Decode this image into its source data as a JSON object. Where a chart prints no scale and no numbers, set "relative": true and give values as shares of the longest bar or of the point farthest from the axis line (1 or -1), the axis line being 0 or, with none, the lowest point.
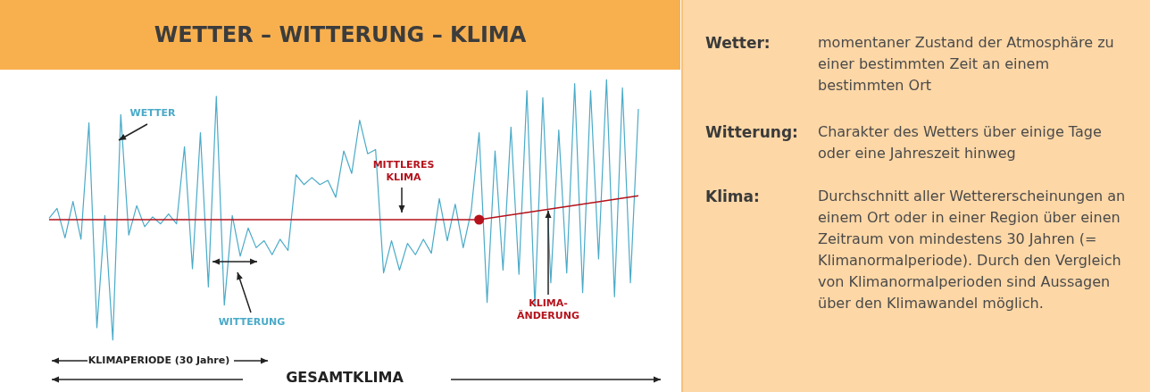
{
  "chart_data": [
    {
      "type": "line",
      "title": "WETTER – WITTERUNG – KLIMA",
      "relative": true,
      "categories": [
        null,
        null,
        null,
        null,
        null,
        null,
        null,
        null,
        null,
        null,
        null,
        null,
        null,
        null,
        null,
        null,
        null,
        null,
        null,
        null,
        null,
        null,
        null,
        null,
        null,
        null,
        null,
        null,
        null,
        null,
        null,
        null,
        null,
        null,
        null,
        null,
        null,
        null,
        null,
        null,
        null,
        null,
        null,
        null,
        null,
        null,
        null,
        null,
        null,
        null,
        null,
        null,
        null,
        null,
        null,
        null,
        null,
        null,
        null,
        null,
        null,
        null,
        null,
        null,
        null,
        null,
        null,
        null,
        null,
        null,
        null,
        null,
        null,
        null,
        null
      ],
      "series": [
        {
          "color": "#4aaac8",
          "values": [
            0.01,
            0.08,
            -0.13,
            0.13,
            -0.14,
            0.69,
            -0.77,
            0.03,
            -0.86,
            0.75,
            -0.11,
            0.1,
            -0.05,
            0.02,
            -0.03,
            0.04,
            -0.03,
            0.52,
            -0.35,
            0.62,
            -0.48,
            0.88,
            -0.61,
            0.03,
            -0.26,
            -0.06,
            -0.2,
            -0.15,
            -0.25,
            -0.14,
            -0.22,
            0.32,
            0.25,
            0.3,
            0.25,
            0.28,
            0.16,
            0.49,
            0.33,
            0.71,
            0.47,
            0.5,
            -0.38,
            -0.15,
            -0.36,
            -0.17,
            -0.25,
            -0.14,
            -0.24,
            0.15,
            -0.15,
            0.11,
            -0.2,
            0.06,
            0.62,
            -0.59,
            0.49,
            -0.36,
            0.66,
            -0.39,
            0.92,
            -0.62,
            0.87,
            -0.45,
            0.64,
            -0.38,
            0.97,
            -0.52,
            0.92,
            -0.28,
            1,
            -0.55,
            0.94,
            -0.45,
            0.79
          ]
        },
        {
          "color": "#b5121b",
          "values": [
            0,
            null,
            null,
            null,
            null,
            null,
            null,
            null,
            null,
            null,
            null,
            null,
            null,
            null,
            null,
            null,
            null,
            null,
            null,
            null,
            null,
            null,
            null,
            null,
            null,
            null,
            null,
            null,
            null,
            null,
            null,
            null,
            null,
            null,
            null,
            null,
            null,
            null,
            null,
            null,
            null,
            null,
            null,
            null,
            null,
            null,
            null,
            null,
            null,
            null,
            null,
            null,
            null,
            null,
            0,
            null,
            null,
            null,
            null,
            null,
            null,
            null,
            null,
            null,
            null,
            null,
            null,
            null,
            null,
            null,
            null,
            null,
            null,
            null,
            0.17
          ]
        }
      ],
      "annotations": [
        "WETTER",
        "MITTLERES KLIMA",
        "WITTERUNG",
        "KLIMA-ÄNDERUNG",
        "KLIMAPERIODE (30 Jahre)",
        "GESAMTKLIMA"
      ]
    },
    {
      "type": "other",
      "annotations": [
        "Wetter:",
        "momentaner Zustand der Atmosphäre zu einer bestimmten Zeit an einem bestimmten Ort",
        "Witterung:",
        "Charakter des Wetters über einige Tage oder eine Jahreszeit hinweg",
        "Klima:",
        "Durchschnitt aller Wettererscheinungen an einem Ort oder in einer Region über einen Zeitraum von mindestens 30 Jahren (= Klimanormalperiode). Durch den Vergleich von Klimanormalperioden sind Aussagen über den Klimawandel möglich."
      ]
    }
  ]
}
